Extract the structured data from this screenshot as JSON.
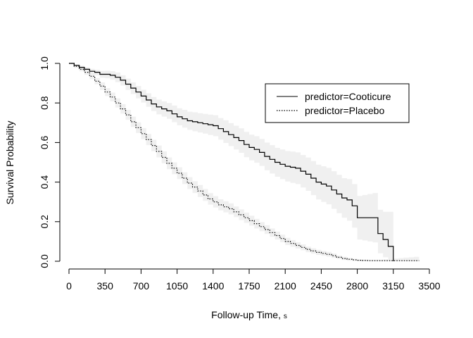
{
  "chart_data": {
    "type": "line",
    "step": true,
    "title": "",
    "xlabel": "Follow-up Time",
    "xlabel_unit": "s",
    "ylabel": "Survival Probability",
    "xlim": [
      0,
      3500
    ],
    "ylim": [
      0,
      1
    ],
    "x_ticks": [
      "0",
      "350",
      "700",
      "1050",
      "1400",
      "1750",
      "2100",
      "2450",
      "2800",
      "3150",
      "3500"
    ],
    "y_ticks": [
      "0.0",
      "0.2",
      "0.4",
      "0.6",
      "0.8",
      "1.0"
    ],
    "grid": false,
    "legend_position": "top-right",
    "confidence_band_color": "#f0f0f0",
    "series": [
      {
        "name": "predictor=Cooticure",
        "line_style": "solid",
        "color": "#000000",
        "x": [
          0,
          50,
          100,
          150,
          200,
          250,
          300,
          350,
          400,
          450,
          500,
          550,
          600,
          650,
          700,
          750,
          800,
          850,
          900,
          950,
          1000,
          1050,
          1100,
          1150,
          1200,
          1250,
          1300,
          1350,
          1400,
          1450,
          1500,
          1550,
          1600,
          1650,
          1700,
          1750,
          1800,
          1850,
          1900,
          1950,
          2000,
          2050,
          2100,
          2150,
          2200,
          2250,
          2300,
          2350,
          2400,
          2450,
          2500,
          2550,
          2600,
          2650,
          2700,
          2750,
          2800,
          2850,
          2900,
          2950,
          3000,
          3050,
          3100,
          3150
        ],
        "y": [
          1.0,
          0.99,
          0.98,
          0.97,
          0.96,
          0.955,
          0.945,
          0.945,
          0.94,
          0.93,
          0.915,
          0.895,
          0.875,
          0.855,
          0.835,
          0.815,
          0.795,
          0.78,
          0.77,
          0.76,
          0.745,
          0.73,
          0.72,
          0.71,
          0.705,
          0.7,
          0.695,
          0.69,
          0.685,
          0.67,
          0.655,
          0.64,
          0.625,
          0.61,
          0.59,
          0.575,
          0.565,
          0.55,
          0.53,
          0.515,
          0.5,
          0.49,
          0.48,
          0.475,
          0.47,
          0.455,
          0.44,
          0.42,
          0.4,
          0.39,
          0.38,
          0.36,
          0.34,
          0.32,
          0.31,
          0.28,
          0.22,
          0.22,
          0.22,
          0.22,
          0.14,
          0.11,
          0.075,
          0.0
        ],
        "ci_lower": [
          1.0,
          0.985,
          0.972,
          0.96,
          0.948,
          0.94,
          0.927,
          0.925,
          0.917,
          0.905,
          0.888,
          0.866,
          0.845,
          0.823,
          0.802,
          0.78,
          0.759,
          0.742,
          0.731,
          0.72,
          0.703,
          0.687,
          0.675,
          0.664,
          0.657,
          0.651,
          0.645,
          0.638,
          0.632,
          0.615,
          0.598,
          0.582,
          0.565,
          0.548,
          0.526,
          0.51,
          0.498,
          0.482,
          0.46,
          0.443,
          0.427,
          0.415,
          0.403,
          0.396,
          0.39,
          0.373,
          0.356,
          0.334,
          0.312,
          0.3,
          0.288,
          0.265,
          0.243,
          0.22,
          0.205,
          0.17,
          0.11,
          0.105,
          0.1,
          0.095,
          0.04,
          0.02,
          0.0,
          0.0
        ],
        "ci_upper": [
          1.0,
          0.995,
          0.988,
          0.98,
          0.972,
          0.968,
          0.962,
          0.963,
          0.961,
          0.954,
          0.94,
          0.923,
          0.904,
          0.886,
          0.867,
          0.849,
          0.83,
          0.817,
          0.808,
          0.8,
          0.787,
          0.773,
          0.765,
          0.756,
          0.753,
          0.748,
          0.745,
          0.741,
          0.738,
          0.724,
          0.712,
          0.698,
          0.685,
          0.672,
          0.654,
          0.64,
          0.632,
          0.618,
          0.6,
          0.587,
          0.573,
          0.565,
          0.557,
          0.554,
          0.55,
          0.537,
          0.524,
          0.506,
          0.488,
          0.48,
          0.472,
          0.455,
          0.437,
          0.42,
          0.415,
          0.39,
          0.33,
          0.335,
          0.34,
          0.345,
          0.26,
          0.25,
          0.25,
          0.25
        ]
      },
      {
        "name": "predictor=Placebo",
        "line_style": "dotted",
        "color": "#000000",
        "x": [
          0,
          50,
          100,
          150,
          200,
          250,
          300,
          350,
          400,
          450,
          500,
          550,
          600,
          650,
          700,
          750,
          800,
          850,
          900,
          950,
          1000,
          1050,
          1100,
          1150,
          1200,
          1250,
          1300,
          1350,
          1400,
          1450,
          1500,
          1550,
          1600,
          1650,
          1700,
          1750,
          1800,
          1850,
          1900,
          1950,
          2000,
          2050,
          2100,
          2150,
          2200,
          2250,
          2300,
          2350,
          2400,
          2450,
          2500,
          2550,
          2600,
          2650,
          2700,
          2750,
          2800,
          2850,
          2900,
          2950,
          3000,
          3050,
          3100,
          3150,
          3200,
          3250,
          3300,
          3350,
          3400
        ],
        "y": [
          1.0,
          0.985,
          0.97,
          0.955,
          0.935,
          0.91,
          0.885,
          0.855,
          0.83,
          0.8,
          0.77,
          0.74,
          0.705,
          0.675,
          0.645,
          0.615,
          0.585,
          0.555,
          0.525,
          0.495,
          0.47,
          0.445,
          0.42,
          0.395,
          0.375,
          0.355,
          0.335,
          0.315,
          0.3,
          0.285,
          0.275,
          0.265,
          0.25,
          0.235,
          0.22,
          0.205,
          0.19,
          0.175,
          0.16,
          0.145,
          0.13,
          0.115,
          0.1,
          0.09,
          0.08,
          0.07,
          0.06,
          0.052,
          0.045,
          0.04,
          0.035,
          0.028,
          0.02,
          0.014,
          0.01,
          0.007,
          0.005,
          0.004,
          0.003,
          0.003,
          0.003,
          0.003,
          0.003,
          0.003,
          0.003,
          0.003,
          0.003,
          0.003,
          0.003
        ],
        "ci_lower": [
          1.0,
          0.978,
          0.96,
          0.942,
          0.92,
          0.894,
          0.866,
          0.835,
          0.808,
          0.777,
          0.746,
          0.715,
          0.679,
          0.648,
          0.617,
          0.587,
          0.556,
          0.525,
          0.495,
          0.465,
          0.44,
          0.415,
          0.39,
          0.365,
          0.345,
          0.325,
          0.305,
          0.286,
          0.271,
          0.257,
          0.247,
          0.237,
          0.223,
          0.208,
          0.194,
          0.18,
          0.166,
          0.152,
          0.138,
          0.124,
          0.11,
          0.096,
          0.082,
          0.073,
          0.064,
          0.055,
          0.046,
          0.038,
          0.032,
          0.028,
          0.023,
          0.017,
          0.011,
          0.006,
          0.003,
          0.001,
          0.0,
          0.0,
          0.0,
          0.0,
          0.0,
          0.0,
          0.0,
          0.0,
          0.0,
          0.0,
          0.0,
          0.0,
          0.0
        ],
        "ci_upper": [
          1.0,
          0.992,
          0.98,
          0.968,
          0.95,
          0.926,
          0.904,
          0.875,
          0.852,
          0.823,
          0.794,
          0.765,
          0.731,
          0.702,
          0.673,
          0.643,
          0.614,
          0.585,
          0.555,
          0.525,
          0.5,
          0.475,
          0.45,
          0.425,
          0.405,
          0.385,
          0.365,
          0.344,
          0.329,
          0.313,
          0.303,
          0.293,
          0.277,
          0.262,
          0.246,
          0.23,
          0.214,
          0.198,
          0.182,
          0.166,
          0.15,
          0.134,
          0.118,
          0.107,
          0.096,
          0.085,
          0.074,
          0.066,
          0.058,
          0.052,
          0.047,
          0.039,
          0.029,
          0.022,
          0.017,
          0.013,
          0.01,
          0.009,
          0.008,
          0.008,
          0.008,
          0.01,
          0.012,
          0.014,
          0.016,
          0.018,
          0.02,
          0.022,
          0.024
        ]
      }
    ]
  }
}
